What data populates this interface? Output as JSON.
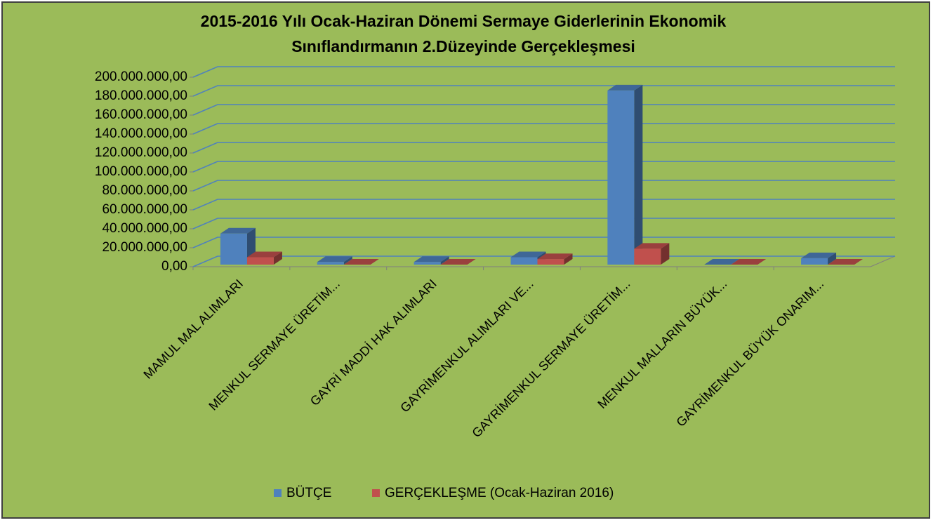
{
  "chart_data": {
    "type": "bar3d",
    "title": [
      "2015-2016 Yılı Ocak-Haziran Dönemi Sermaye Giderlerinin Ekonomik",
      "Sınıflandırmanın  2.Düzeyinde Gerçekleşmesi"
    ],
    "categories": [
      "MAMUL MAL ALIMLARI",
      "MENKUL SERMAYE ÜRETİM...",
      "GAYRİ MADDİ HAK ALIMLARI",
      "GAYRİMENKUL ALIMLARI VE...",
      "GAYRİMENKUL SERMAYE ÜRETİM...",
      "MENKUL MALLARIN BÜYÜK...",
      "GAYRİMENKUL BÜYÜK ONARIM..."
    ],
    "series": [
      {
        "name": "BÜTÇE",
        "color": "#4f81bd",
        "values": [
          35000000,
          5000000,
          5000000,
          10000000,
          186000000,
          500000,
          9000000
        ]
      },
      {
        "name": "GERÇEKLEŞME (Ocak-Haziran 2016)",
        "color": "#c0504d",
        "values": [
          10000000,
          2000000,
          500000,
          8000000,
          19000000,
          200000,
          1000000
        ]
      }
    ],
    "ylim": [
      0,
      200000000
    ],
    "yticks": [
      {
        "value": 0,
        "label": "0,00"
      },
      {
        "value": 20000000,
        "label": "20.000.000,00"
      },
      {
        "value": 40000000,
        "label": "40.000.000,00"
      },
      {
        "value": 60000000,
        "label": "60.000.000,00"
      },
      {
        "value": 80000000,
        "label": "80.000.000,00"
      },
      {
        "value": 100000000,
        "label": "100.000.000,00"
      },
      {
        "value": 120000000,
        "label": "120.000.000,00"
      },
      {
        "value": 140000000,
        "label": "140.000.000,00"
      },
      {
        "value": 160000000,
        "label": "160.000.000,00"
      },
      {
        "value": 180000000,
        "label": "180.000.000,00"
      },
      {
        "value": 200000000,
        "label": "200.000.000,00"
      }
    ],
    "grid": true,
    "legend": "bottom"
  }
}
